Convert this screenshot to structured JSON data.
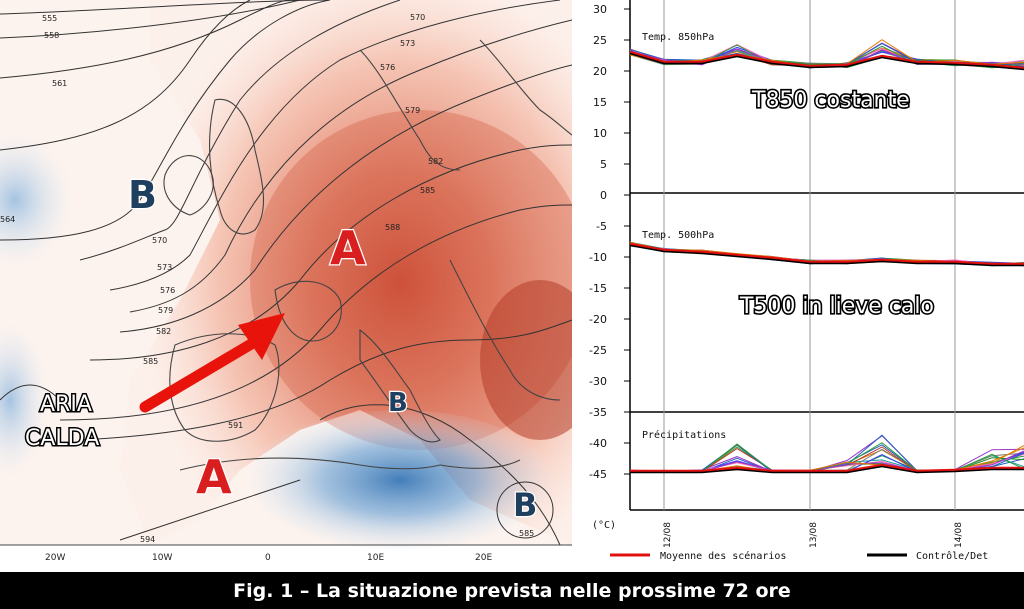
{
  "map": {
    "isolines": [
      "555",
      "558",
      "561",
      "564",
      "570",
      "573",
      "576",
      "579",
      "582",
      "585",
      "588",
      "591",
      "594",
      "570",
      "573",
      "576",
      "579",
      "582",
      "585",
      "585"
    ],
    "lon_labels": [
      "20W",
      "10W",
      "0",
      "10E",
      "20E"
    ],
    "pressure_marks": [
      "A",
      "A",
      "B",
      "B",
      "B"
    ],
    "warm_air_label_line1": "ARIA",
    "warm_air_label_line2": "CALDA",
    "colors": {
      "warm": "#d9573a",
      "cold": "#3f7fbf",
      "arrow": "#e8140c",
      "label_red": "#d81e1e",
      "label_navy": "#1f3f5f"
    }
  },
  "chart": {
    "y_ticks": [
      "30",
      "25",
      "20",
      "15",
      "10",
      "5",
      "0",
      "-5",
      "-10",
      "-15",
      "-20",
      "-25",
      "-30",
      "-35",
      "-40",
      "-45"
    ],
    "panel_t850_title": "Temp. 850hPa",
    "panel_t500_title": "Temp. 500hPa",
    "panel_precip_title": "Précipitations",
    "overlay_t850": "T850 costante",
    "overlay_t500": "T500 in lieve calo",
    "unit_label": "(°C)",
    "x_dates": [
      "12/08",
      "13/08",
      "14/08"
    ],
    "legend_mean": "Moyenne des scénarios",
    "legend_control": "Contrôle/Det",
    "colors": {
      "mean": "#e01010",
      "control": "#000000"
    }
  },
  "caption": "Fig. 1 – La situazione prevista nelle prossime 72 ore"
}
